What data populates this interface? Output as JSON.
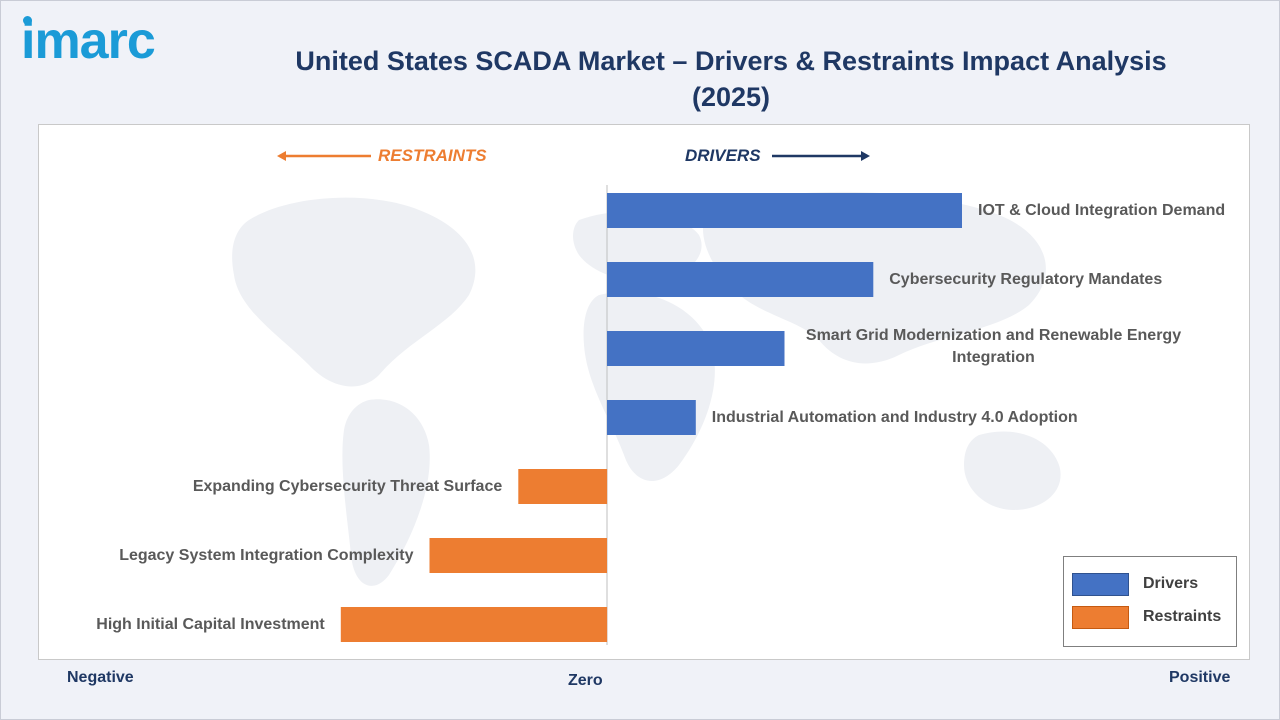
{
  "brand": {
    "logo_text": "imarc"
  },
  "title": "United States SCADA Market – Drivers & Restraints Impact Analysis (2025)",
  "direction_labels": {
    "restraints": "RESTRAINTS",
    "drivers": "DRIVERS"
  },
  "axis_words": {
    "negative": "Negative",
    "zero": "Zero",
    "positive": "Positive"
  },
  "legend": [
    {
      "label": "Drivers",
      "color": "#4472c4"
    },
    {
      "label": "Restraints",
      "color": "#ed7d31"
    }
  ],
  "colors": {
    "drivers": "#4472c4",
    "restraints": "#ed7d31",
    "title": "#1f3864",
    "logo": "#1b9bd7"
  },
  "chart_data": {
    "type": "bar",
    "orientation": "horizontal",
    "title": "United States SCADA Market – Drivers & Restraints Impact Analysis (2025)",
    "xlabel": "",
    "ylabel": "",
    "xlim": [
      -3.2,
      4.3
    ],
    "grid": false,
    "legend_position": "bottom-right",
    "categories": [
      "IOT & Cloud Integration Demand",
      "Cybersecurity Regulatory Mandates",
      "Smart Grid Modernization and Renewable Energy Integration",
      "Industrial Automation and Industry 4.0 Adoption",
      "Expanding Cybersecurity Threat Surface",
      "Legacy System Integration Complexity",
      "High Initial Capital Investment"
    ],
    "series": [
      {
        "name": "Drivers",
        "values": [
          4.0,
          3.0,
          2.0,
          1.0,
          null,
          null,
          null
        ]
      },
      {
        "name": "Restraints",
        "values": [
          null,
          null,
          null,
          null,
          -1.0,
          -2.0,
          -3.0
        ]
      }
    ]
  }
}
